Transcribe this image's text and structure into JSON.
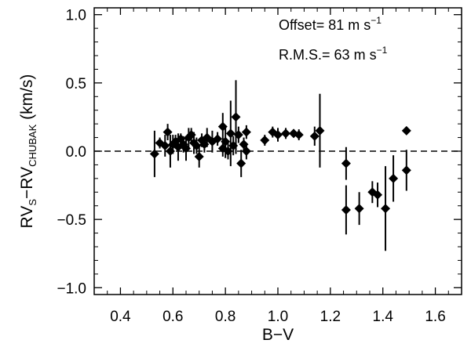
{
  "chart_data": {
    "type": "scatter",
    "xlabel": "B−V",
    "ylabel": {
      "base1": "RV",
      "sub1": "S",
      "base2": "−RV",
      "sub2": "CHUBAK",
      "unit": " (km/s)"
    },
    "xlim": [
      0.3,
      1.7
    ],
    "ylim": [
      -1.05,
      1.05
    ],
    "xticks": [
      0.4,
      0.6,
      0.8,
      1.0,
      1.2,
      1.4,
      1.6
    ],
    "xtick_labels": [
      "0.4",
      "0.6",
      "0.8",
      "1.0",
      "1.2",
      "1.4",
      "1.6"
    ],
    "yticks": [
      -1.0,
      -0.5,
      0.0,
      0.5,
      1.0
    ],
    "ytick_labels": [
      "−1.0",
      "−0.5",
      "0.0",
      "0.5",
      "1.0"
    ],
    "reference_line": {
      "y": 0.0,
      "style": "dashed"
    },
    "annotations": [
      {
        "label": "Offset=",
        "value": "81",
        "unit": "m s",
        "exp": "−1"
      },
      {
        "label": "R.M.S.=",
        "value": "63",
        "unit": "m s",
        "exp": "−1"
      }
    ],
    "points": [
      {
        "x": 0.53,
        "y": -0.02,
        "err": 0.17
      },
      {
        "x": 0.55,
        "y": 0.06,
        "err": 0.04
      },
      {
        "x": 0.57,
        "y": 0.04,
        "err": 0.08
      },
      {
        "x": 0.58,
        "y": 0.14,
        "err": 0.06
      },
      {
        "x": 0.59,
        "y": 0.0,
        "err": 0.12
      },
      {
        "x": 0.6,
        "y": 0.05,
        "err": 0.07
      },
      {
        "x": 0.61,
        "y": 0.07,
        "err": 0.05
      },
      {
        "x": 0.62,
        "y": 0.03,
        "err": 0.1
      },
      {
        "x": 0.63,
        "y": 0.09,
        "err": 0.04
      },
      {
        "x": 0.64,
        "y": 0.05,
        "err": 0.06
      },
      {
        "x": 0.65,
        "y": 0.02,
        "err": 0.09
      },
      {
        "x": 0.66,
        "y": 0.1,
        "err": 0.07
      },
      {
        "x": 0.67,
        "y": 0.12,
        "err": 0.05
      },
      {
        "x": 0.68,
        "y": 0.06,
        "err": 0.08
      },
      {
        "x": 0.69,
        "y": 0.04,
        "err": 0.06
      },
      {
        "x": 0.7,
        "y": -0.04,
        "err": 0.08
      },
      {
        "x": 0.71,
        "y": 0.08,
        "err": 0.05
      },
      {
        "x": 0.72,
        "y": 0.05,
        "err": 0.06
      },
      {
        "x": 0.73,
        "y": 0.1,
        "err": 0.07
      },
      {
        "x": 0.75,
        "y": 0.07,
        "err": 0.08
      },
      {
        "x": 0.77,
        "y": 0.09,
        "err": 0.05
      },
      {
        "x": 0.79,
        "y": 0.02,
        "err": 0.06
      },
      {
        "x": 0.79,
        "y": 0.18,
        "err": 0.1
      },
      {
        "x": 0.8,
        "y": 0.07,
        "err": 0.12
      },
      {
        "x": 0.81,
        "y": 0.0,
        "err": 0.06
      },
      {
        "x": 0.82,
        "y": 0.13,
        "err": 0.24
      },
      {
        "x": 0.83,
        "y": 0.04,
        "err": 0.07
      },
      {
        "x": 0.84,
        "y": 0.25,
        "err": 0.27
      },
      {
        "x": 0.85,
        "y": 0.12,
        "err": 0.06
      },
      {
        "x": 0.86,
        "y": -0.09,
        "err": 0.1
      },
      {
        "x": 0.87,
        "y": 0.05,
        "err": 0.05
      },
      {
        "x": 0.88,
        "y": 0.14,
        "err": 0.05
      },
      {
        "x": 0.88,
        "y": 0.0,
        "err": 0.06
      },
      {
        "x": 0.95,
        "y": 0.08,
        "err": 0.04
      },
      {
        "x": 0.98,
        "y": 0.14,
        "err": 0.04
      },
      {
        "x": 1.0,
        "y": 0.12,
        "err": 0.05
      },
      {
        "x": 1.03,
        "y": 0.13,
        "err": 0.04
      },
      {
        "x": 1.06,
        "y": 0.13,
        "err": 0.03
      },
      {
        "x": 1.08,
        "y": 0.12,
        "err": 0.04
      },
      {
        "x": 1.14,
        "y": 0.11,
        "err": 0.07
      },
      {
        "x": 1.16,
        "y": 0.15,
        "err": 0.27
      },
      {
        "x": 1.26,
        "y": -0.09,
        "err": 0.12
      },
      {
        "x": 1.26,
        "y": -0.43,
        "err": 0.18
      },
      {
        "x": 1.31,
        "y": -0.42,
        "err": 0.12
      },
      {
        "x": 1.36,
        "y": -0.3,
        "err": 0.08
      },
      {
        "x": 1.38,
        "y": -0.32,
        "err": 0.09
      },
      {
        "x": 1.41,
        "y": -0.42,
        "err": 0.31
      },
      {
        "x": 1.44,
        "y": -0.2,
        "err": 0.17
      },
      {
        "x": 1.49,
        "y": 0.15,
        "err": 0.02
      },
      {
        "x": 1.49,
        "y": -0.14,
        "err": 0.15
      }
    ]
  }
}
